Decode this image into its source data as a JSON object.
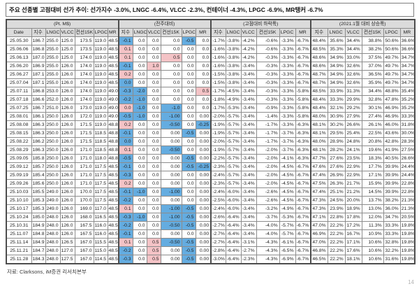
{
  "title": "주요 선종별 고점대비 선가 추이: 선가지수 -3.0%, LNGC -6.4%, VLCC -2.3%, 컨테이너 -4.3%, LPGC -6.9%, MR탱커 -6.7%",
  "source": "자료: Clarksons, iM증권 리서치본부",
  "page_number": "14",
  "colors": {
    "highlight_up": "#f4c3c6",
    "highlight_down": "#64ace0",
    "header_bg": "#dbdbdb"
  },
  "table": {
    "group_headers": [
      "(Pt. M$)",
      "(전주대비)",
      "(고점대비 하락폭)",
      "(2021.1월 대비 상승폭)"
    ],
    "date_header": "Date",
    "col_headers": [
      "지수",
      "LNGC",
      "VLCC",
      "컨선15K",
      "LPGC",
      "MR"
    ],
    "rows": [
      {
        "date": "25.05.30",
        "price": [
          "186.7",
          "255.0",
          "125.0",
          "173.5",
          "119.0",
          "48.5"
        ],
        "wow": [
          "-0.1",
          "0.0",
          "0.0",
          "0.0",
          "-0.5",
          "0.0"
        ],
        "hl": [
          "d",
          "",
          "",
          "",
          "d",
          ""
        ],
        "peak": [
          "-1.7%",
          "-3.8%",
          "-4.2%",
          "-0.6%",
          "-3.3%",
          "-6.7%"
        ],
        "gain": [
          "48.4%",
          "35.6%",
          "34.4%",
          "38.8%",
          "50.6%",
          "36.6%"
        ]
      },
      {
        "date": "25.06.06",
        "price": [
          "186.8",
          "255.0",
          "125.0",
          "173.5",
          "119.0",
          "48.5"
        ],
        "wow": [
          "0.1",
          "0.0",
          "0.0",
          "0.0",
          "0.0",
          "0.0"
        ],
        "hl": [
          "u",
          "",
          "",
          "",
          "",
          ""
        ],
        "peak": [
          "-1.6%",
          "-3.8%",
          "-4.2%",
          "-0.6%",
          "-3.3%",
          "-6.7%"
        ],
        "gain": [
          "48.5%",
          "35.3%",
          "34.4%",
          "38.2%",
          "50.6%",
          "36.6%"
        ]
      },
      {
        "date": "25.06.13",
        "price": [
          "187.0",
          "255.0",
          "125.0",
          "174.0",
          "119.0",
          "48.5"
        ],
        "wow": [
          "0.1",
          "0.0",
          "0.0",
          "0.5",
          "0.0",
          "0.0"
        ],
        "hl": [
          "u",
          "",
          "",
          "u",
          "",
          ""
        ],
        "peak": [
          "-1.6%",
          "-3.8%",
          "-4.2%",
          "-0.3%",
          "-3.3%",
          "-6.7%"
        ],
        "gain": [
          "48.6%",
          "34.9%",
          "33.0%",
          "37.5%",
          "49.7%",
          "34.7%"
        ]
      },
      {
        "date": "25.06.20",
        "price": [
          "186.9",
          "255.0",
          "126.0",
          "174.0",
          "119.0",
          "48.5"
        ],
        "wow": [
          "-0.1",
          "0.0",
          "1.0",
          "0.0",
          "0.0",
          "0.0"
        ],
        "hl": [
          "d",
          "",
          "u",
          "",
          "",
          ""
        ],
        "peak": [
          "-1.6%",
          "-3.8%",
          "-3.4%",
          "-0.3%",
          "-3.3%",
          "-6.7%"
        ],
        "gain": [
          "48.6%",
          "34.9%",
          "32.6%",
          "37.0%",
          "49.7%",
          "34.7%"
        ]
      },
      {
        "date": "25.06.27",
        "price": [
          "187.1",
          "255.0",
          "126.0",
          "174.0",
          "119.0",
          "48.5"
        ],
        "wow": [
          "0.2",
          "0.0",
          "0.0",
          "0.0",
          "0.0",
          "0.0"
        ],
        "hl": [
          "u",
          "",
          "",
          "",
          "",
          ""
        ],
        "peak": [
          "-1.5%",
          "-3.8%",
          "-3.4%",
          "-0.3%",
          "-3.3%",
          "-6.7%"
        ],
        "gain": [
          "48.7%",
          "34.9%",
          "32.6%",
          "36.5%",
          "49.7%",
          "34.7%"
        ]
      },
      {
        "date": "25.07.04",
        "price": [
          "187.1",
          "255.0",
          "126.0",
          "174.0",
          "119.0",
          "48.5"
        ],
        "wow": [
          "0.0",
          "0.0",
          "0.0",
          "0.0",
          "0.0",
          "0.0"
        ],
        "hl": [
          "d",
          "",
          "",
          "",
          "",
          ""
        ],
        "peak": [
          "-1.5%",
          "-3.8%",
          "-3.4%",
          "-0.3%",
          "-3.3%",
          "-6.7%"
        ],
        "gain": [
          "48.7%",
          "34.9%",
          "32.6%",
          "35.9%",
          "49.7%",
          "34.7%"
        ]
      },
      {
        "date": "25.07.11",
        "price": [
          "186.8",
          "253.0",
          "126.0",
          "174.0",
          "119.0",
          "49.0"
        ],
        "wow": [
          "-0.3",
          "-2.0",
          "0.0",
          "0.0",
          "0.0",
          "0.5"
        ],
        "hl": [
          "d",
          "d",
          "",
          "",
          "",
          "u"
        ],
        "peak": [
          "-1.7%",
          "-4.5%",
          "-3.4%",
          "-0.3%",
          "-3.3%",
          "-5.8%"
        ],
        "gain": [
          "48.5%",
          "33.9%",
          "31.3%",
          "34.4%",
          "48.8%",
          "35.4%"
        ]
      },
      {
        "date": "25.07.18",
        "price": [
          "186.6",
          "252.0",
          "126.0",
          "174.0",
          "119.0",
          "49.0"
        ],
        "wow": [
          "-0.2",
          "-1.0",
          "0.0",
          "0.0",
          "0.0",
          "0.0"
        ],
        "hl": [
          "d",
          "d",
          "",
          "",
          "",
          ""
        ],
        "peak": [
          "-1.8%",
          "-4.9%",
          "-3.4%",
          "-0.3%",
          "-3.3%",
          "-5.8%"
        ],
        "gain": [
          "48.4%",
          "33.3%",
          "29.9%",
          "32.8%",
          "47.8%",
          "35.2%"
        ]
      },
      {
        "date": "25.07.25",
        "price": [
          "186.7",
          "251.0",
          "126.0",
          "173.0",
          "119.0",
          "49.0"
        ],
        "wow": [
          "0.0",
          "-1.0",
          "0.0",
          "-1.0",
          "0.0",
          "0.0"
        ],
        "hl": [
          "u",
          "d",
          "",
          "d",
          "",
          ""
        ],
        "peak": [
          "-1.7%",
          "-5.3%",
          "-3.4%",
          "-0.9%",
          "-3.3%",
          "-5.8%"
        ],
        "gain": [
          "48.4%",
          "32.1%",
          "29.2%",
          "30.1%",
          "46.9%",
          "35.2%"
        ]
      },
      {
        "date": "25.08.01",
        "price": [
          "186.1",
          "250.0",
          "126.0",
          "172.0",
          "119.0",
          "49.0"
        ],
        "wow": [
          "-0.5",
          "-1.0",
          "0.0",
          "-1.00",
          "0.0",
          "0.00"
        ],
        "hl": [
          "d",
          "d",
          "",
          "d",
          "",
          ""
        ],
        "peak": [
          "-2.0%",
          "-5.7%",
          "-3.4%",
          "-1.4%",
          "-3.3%",
          "-5.8%"
        ],
        "gain": [
          "48.0%",
          "30.9%",
          "27.9%",
          "27.4%",
          "46.9%",
          "33.3%"
        ]
      },
      {
        "date": "25.08.08",
        "price": [
          "186.3",
          "250.0",
          "126.0",
          "171.5",
          "119.0",
          "48.8"
        ],
        "wow": [
          "0.2",
          "0.0",
          "0.0",
          "-0.50",
          "0.0",
          "-0.25"
        ],
        "hl": [
          "u",
          "",
          "",
          "d",
          "",
          "d"
        ],
        "peak": [
          "-1.9%",
          "-5.7%",
          "-3.4%",
          "-1.7%",
          "-3.3%",
          "-6.3%"
        ],
        "gain": [
          "48.1%",
          "30.2%",
          "26.6%",
          "26.1%",
          "46.0%",
          "31.8%"
        ]
      },
      {
        "date": "25.08.15",
        "price": [
          "186.3",
          "250.0",
          "126.0",
          "171.5",
          "118.5",
          "48.8"
        ],
        "wow": [
          "-0.1",
          "0.0",
          "0.0",
          "0.00",
          "-0.5",
          "0.00"
        ],
        "hl": [
          "d",
          "",
          "",
          "",
          "d",
          ""
        ],
        "peak": [
          "-1.9%",
          "-5.7%",
          "-3.4%",
          "-1.7%",
          "-3.7%",
          "-6.3%"
        ],
        "gain": [
          "48.1%",
          "29.5%",
          "25.4%",
          "22.5%",
          "43.6%",
          "30.0%"
        ]
      },
      {
        "date": "25.08.22",
        "price": [
          "186.2",
          "250.0",
          "126.0",
          "171.5",
          "118.5",
          "48.8"
        ],
        "wow": [
          "0.0",
          "0.0",
          "0.0",
          "0.00",
          "0.0",
          "0.00"
        ],
        "hl": [
          "d",
          "",
          "",
          "",
          "",
          ""
        ],
        "peak": [
          "-2.0%",
          "-5.7%",
          "-3.4%",
          "-1.7%",
          "-3.7%",
          "-6.3%"
        ],
        "gain": [
          "48.0%",
          "28.9%",
          "24.8%",
          "20.8%",
          "42.8%",
          "28.3%"
        ]
      },
      {
        "date": "25.08.29",
        "price": [
          "186.3",
          "250.0",
          "126.0",
          "171.0",
          "118.5",
          "48.8"
        ],
        "wow": [
          "0.1",
          "0.0",
          "0.0",
          "-0.50",
          "0.0",
          "0.00"
        ],
        "hl": [
          "u",
          "",
          "",
          "d",
          "",
          ""
        ],
        "peak": [
          "-1.9%",
          "-5.7%",
          "-3.4%",
          "-2.0%",
          "-3.7%",
          "-6.3%"
        ],
        "gain": [
          "48.1%",
          "28.2%",
          "24.1%",
          "19.6%",
          "41.9%",
          "27.5%"
        ]
      },
      {
        "date": "25.09.05",
        "price": [
          "185.8",
          "250.0",
          "126.0",
          "171.0",
          "118.0",
          "48.8"
        ],
        "wow": [
          "-0.5",
          "0.0",
          "0.0",
          "0.00",
          "-0.5",
          "0.00"
        ],
        "hl": [
          "d",
          "",
          "",
          "",
          "d",
          ""
        ],
        "peak": [
          "-2.2%",
          "-5.7%",
          "-3.4%",
          "-2.0%",
          "-4.1%",
          "-6.3%"
        ],
        "gain": [
          "47.7%",
          "27.6%",
          "23.5%",
          "18.3%",
          "40.5%",
          "26.6%"
        ]
      },
      {
        "date": "25.09.12",
        "price": [
          "185.7",
          "250.0",
          "126.0",
          "171.0",
          "117.5",
          "48.5"
        ],
        "wow": [
          "-0.1",
          "0.0",
          "0.0",
          "0.00",
          "-0.5",
          "-0.25"
        ],
        "hl": [
          "d",
          "",
          "",
          "",
          "d",
          "d"
        ],
        "peak": [
          "-2.3%",
          "-5.7%",
          "-3.4%",
          "-2.0%",
          "-4.5%",
          "-6.7%"
        ],
        "gain": [
          "47.6%",
          "27.6%",
          "22.9%",
          "17.7%",
          "39.9%",
          "24.4%"
        ]
      },
      {
        "date": "25.09.19",
        "price": [
          "185.4",
          "250.0",
          "126.0",
          "171.0",
          "117.5",
          "48.5"
        ],
        "wow": [
          "-0.3",
          "0.0",
          "0.0",
          "0.00",
          "0.0",
          "0.00"
        ],
        "hl": [
          "d",
          "",
          "",
          "",
          "",
          ""
        ],
        "peak": [
          "-2.4%",
          "-5.7%",
          "-3.4%",
          "-2.0%",
          "-4.5%",
          "-6.7%"
        ],
        "gain": [
          "47.4%",
          "26.9%",
          "22.9%",
          "17.1%",
          "39.9%",
          "24.4%"
        ]
      },
      {
        "date": "25.09.26",
        "price": [
          "185.6",
          "250.0",
          "126.0",
          "171.0",
          "117.5",
          "48.5"
        ],
        "wow": [
          "0.2",
          "0.0",
          "0.0",
          "0.00",
          "0.0",
          "0.00"
        ],
        "hl": [
          "u",
          "",
          "",
          "",
          "",
          ""
        ],
        "peak": [
          "-2.3%",
          "-5.7%",
          "-3.4%",
          "-2.0%",
          "-4.5%",
          "-6.7%"
        ],
        "gain": [
          "47.5%",
          "26.3%",
          "21.7%",
          "15.9%",
          "39.9%",
          "22.8%"
        ]
      },
      {
        "date": "25.10.03",
        "price": [
          "185.5",
          "249.0",
          "126.0",
          "170.0",
          "117.5",
          "48.5"
        ],
        "wow": [
          "-0.1",
          "-1.0",
          "0.0",
          "-1.00",
          "0.0",
          "0.00"
        ],
        "hl": [
          "d",
          "d",
          "",
          "d",
          "",
          ""
        ],
        "peak": [
          "-2.4%",
          "-6.0%",
          "-3.4%",
          "-2.6%",
          "-4.5%",
          "-6.7%"
        ],
        "gain": [
          "47.4%",
          "25.1%",
          "21.2%",
          "14.5%",
          "39.9%",
          "22.8%"
        ]
      },
      {
        "date": "25.10.10",
        "price": [
          "185.3",
          "249.0",
          "126.0",
          "170.0",
          "117.5",
          "48.5"
        ],
        "wow": [
          "-0.2",
          "0.0",
          "0.0",
          "0.00",
          "0.0",
          "0.00"
        ],
        "hl": [
          "d",
          "",
          "",
          "",
          "",
          ""
        ],
        "peak": [
          "-2.5%",
          "-6.0%",
          "-3.4%",
          "-2.6%",
          "-4.5%",
          "-6.7%"
        ],
        "gain": [
          "47.3%",
          "24.5%",
          "20.0%",
          "13.7%",
          "38.2%",
          "21.3%"
        ]
      },
      {
        "date": "25.10.17",
        "price": [
          "185.3",
          "249.0",
          "126.0",
          "169.0",
          "117.0",
          "48.5"
        ],
        "wow": [
          "0.1",
          "0.0",
          "0.0",
          "-1.00",
          "-0.5",
          "0.00"
        ],
        "hl": [
          "u",
          "",
          "",
          "d",
          "d",
          ""
        ],
        "peak": [
          "-2.4%",
          "-6.0%",
          "-3.4%",
          "-3.2%",
          "-4.9%",
          "-6.7%"
        ],
        "gain": [
          "47.3%",
          "23.9%",
          "18.9%",
          "13.0%",
          "36.0%",
          "21.3%"
        ]
      },
      {
        "date": "25.10.24",
        "price": [
          "185.0",
          "248.0",
          "126.0",
          "168.0",
          "116.5",
          "48.5"
        ],
        "wow": [
          "-0.3",
          "-1.0",
          "0.0",
          "-1.00",
          "-0.5",
          "0.00"
        ],
        "hl": [
          "d",
          "d",
          "",
          "d",
          "d",
          ""
        ],
        "peak": [
          "-2.6%",
          "-6.4%",
          "-3.4%",
          "-3.7%",
          "-5.3%",
          "-6.7%"
        ],
        "gain": [
          "47.1%",
          "22.8%",
          "17.8%",
          "12.0%",
          "34.7%",
          "20.5%"
        ]
      },
      {
        "date": "25.10.31",
        "price": [
          "184.9",
          "248.0",
          "126.0",
          "167.5",
          "116.0",
          "48.5"
        ],
        "wow": [
          "-0.2",
          "0.0",
          "0.0",
          "-0.50",
          "-0.5",
          "0.00"
        ],
        "hl": [
          "d",
          "",
          "",
          "d",
          "d",
          ""
        ],
        "peak": [
          "-2.7%",
          "-6.4%",
          "-3.4%",
          "-4.0%",
          "-5.7%",
          "-6.7%"
        ],
        "gain": [
          "47.0%",
          "22.2%",
          "17.2%",
          "11.3%",
          "33.3%",
          "19.8%"
        ]
      },
      {
        "date": "25.11.07",
        "price": [
          "184.8",
          "248.0",
          "126.0",
          "167.5",
          "116.0",
          "48.5"
        ],
        "wow": [
          "-0.1",
          "0.0",
          "0.0",
          "0.00",
          "0.0",
          "0.00"
        ],
        "hl": [
          "d",
          "",
          "",
          "",
          "",
          ""
        ],
        "peak": [
          "-2.7%",
          "-6.4%",
          "-3.4%",
          "-4.0%",
          "-5.7%",
          "-6.7%"
        ],
        "gain": [
          "46.9%",
          "22.2%",
          "16.7%",
          "10.9%",
          "33.3%",
          "19.8%"
        ]
      },
      {
        "date": "25.11.14",
        "price": [
          "184.9",
          "248.0",
          "126.5",
          "167.0",
          "115.5",
          "48.5"
        ],
        "wow": [
          "0.1",
          "0.0",
          "0.5",
          "-0.50",
          "-0.5",
          "0.00"
        ],
        "hl": [
          "u",
          "",
          "u",
          "d",
          "d",
          ""
        ],
        "peak": [
          "-2.7%",
          "-6.4%",
          "-3.1%",
          "-4.3%",
          "-6.1%",
          "-6.7%"
        ],
        "gain": [
          "47.0%",
          "22.2%",
          "17.1%",
          "10.6%",
          "32.8%",
          "19.8%"
        ]
      },
      {
        "date": "25.11.21",
        "price": [
          "184.7",
          "248.0",
          "127.0",
          "167.0",
          "115.0",
          "48.5"
        ],
        "wow": [
          "-0.2",
          "0.0",
          "0.5",
          "0.00",
          "-0.5",
          "0.00"
        ],
        "hl": [
          "d",
          "",
          "u",
          "",
          "d",
          ""
        ],
        "peak": [
          "-2.8%",
          "-6.4%",
          "-2.7%",
          "-4.3%",
          "-6.5%",
          "-6.7%"
        ],
        "gain": [
          "46.8%",
          "22.2%",
          "17.6%",
          "10.6%",
          "32.2%",
          "19.8%"
        ]
      },
      {
        "date": "25.11.28",
        "price": [
          "184.3",
          "248.0",
          "127.5",
          "167.0",
          "114.5",
          "48.5"
        ],
        "wow": [
          "-0.3",
          "0.0",
          "0.5",
          "0.00",
          "-0.5",
          "0.00"
        ],
        "hl": [
          "d",
          "",
          "u",
          "",
          "d",
          ""
        ],
        "peak": [
          "-3.0%",
          "-6.4%",
          "-2.3%",
          "-4.3%",
          "-6.9%",
          "-6.7%"
        ],
        "gain": [
          "46.5%",
          "22.2%",
          "18.1%",
          "10.6%",
          "31.6%",
          "19.8%"
        ]
      }
    ]
  }
}
